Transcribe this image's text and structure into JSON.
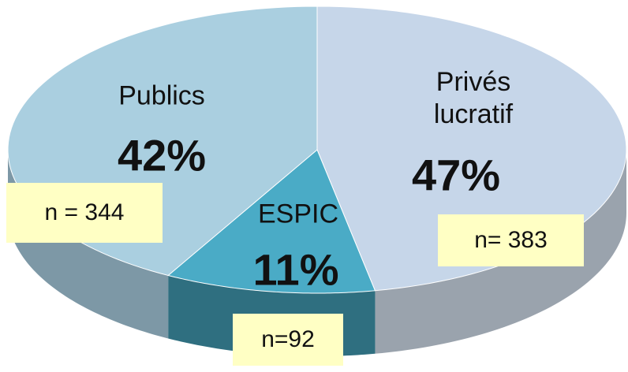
{
  "chart_data": {
    "type": "pie",
    "categories": [
      "Privés lucratif",
      "ESPIC",
      "Publics"
    ],
    "values": [
      47,
      11,
      42
    ],
    "value_labels": [
      "47%",
      "11%",
      "42%"
    ],
    "annotations": [
      "n= 383",
      "n=92",
      "n = 344"
    ],
    "colors": [
      "#c6d6e9",
      "#4aabc6",
      "#aacfe0"
    ],
    "side_colors": [
      "#9aa3ad",
      "#2f6f80",
      "#7d98a6"
    ]
  }
}
